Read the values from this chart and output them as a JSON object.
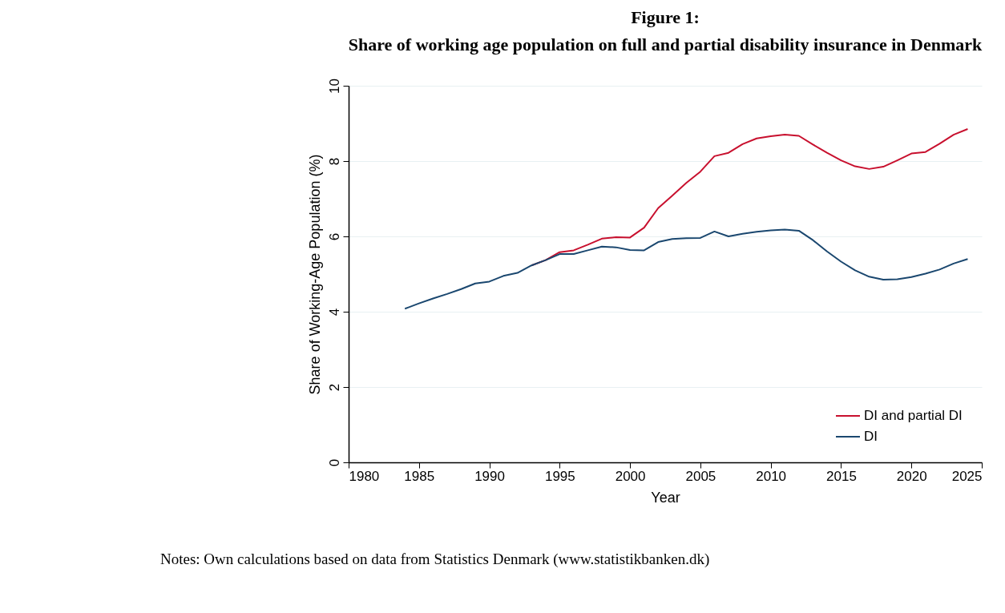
{
  "chart_data": {
    "type": "line",
    "title": "Figure 1:",
    "subtitle": "Share of working age population on full and partial disability insurance in Denmark",
    "xlabel": "Year",
    "ylabel": "Share of Working-Age Population (%)",
    "x": [
      1984,
      1985,
      1986,
      1987,
      1988,
      1989,
      1990,
      1991,
      1992,
      1993,
      1994,
      1995,
      1996,
      1997,
      1998,
      1999,
      2000,
      2001,
      2002,
      2003,
      2004,
      2005,
      2006,
      2007,
      2008,
      2009,
      2010,
      2011,
      2012,
      2013,
      2014,
      2015,
      2016,
      2017,
      2018,
      2019,
      2020,
      2021,
      2022,
      2023,
      2024
    ],
    "series": [
      {
        "name": "DI and partial DI",
        "color": "#c8102e",
        "values": [
          null,
          null,
          null,
          null,
          null,
          null,
          null,
          null,
          null,
          5.23,
          5.37,
          5.58,
          5.63,
          5.78,
          5.94,
          5.98,
          5.97,
          6.23,
          6.75,
          7.08,
          7.42,
          7.72,
          8.13,
          8.22,
          8.45,
          8.6,
          8.66,
          8.7,
          8.67,
          8.44,
          8.22,
          8.02,
          7.86,
          7.79,
          7.85,
          8.02,
          8.2,
          8.24,
          8.46,
          8.7,
          8.85
        ]
      },
      {
        "name": "DI",
        "color": "#1a476f",
        "values": [
          4.08,
          4.22,
          4.35,
          4.47,
          4.6,
          4.75,
          4.8,
          4.95,
          5.03,
          5.23,
          5.37,
          5.53,
          5.53,
          5.63,
          5.73,
          5.71,
          5.64,
          5.63,
          5.85,
          5.93,
          5.95,
          5.96,
          6.13,
          6.0,
          6.07,
          6.12,
          6.16,
          6.18,
          6.15,
          5.9,
          5.6,
          5.33,
          5.1,
          4.93,
          4.85,
          4.86,
          4.92,
          5.01,
          5.12,
          5.28,
          5.4
        ]
      }
    ],
    "xlim": [
      1980,
      2025
    ],
    "xticks": [
      1980,
      1985,
      1990,
      1995,
      2000,
      2005,
      2010,
      2015,
      2020,
      2025
    ],
    "ylim": [
      0,
      10
    ],
    "yticks": [
      0,
      2,
      4,
      6,
      8,
      10
    ],
    "grid": "y",
    "legend": "bottom right",
    "marker": "none",
    "line_style": "solid",
    "annotations": [
      "Notes: Own calculations based on data from Statistics Denmark (www.statistikbanken.dk)"
    ]
  }
}
